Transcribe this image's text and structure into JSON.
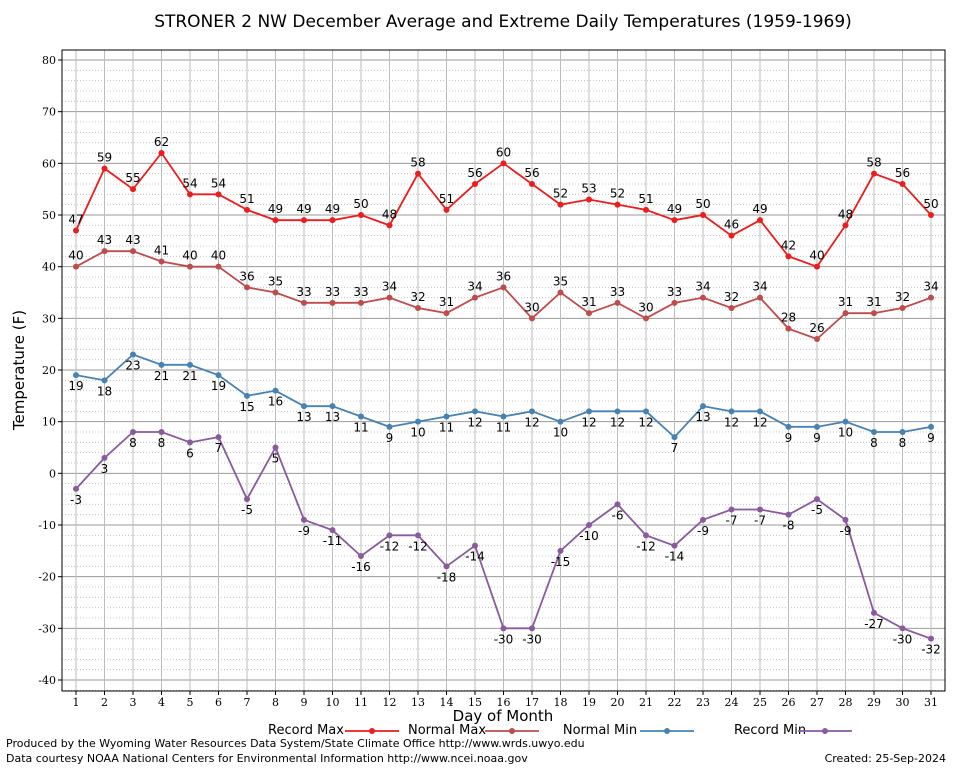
{
  "chart_data": {
    "type": "line",
    "title": "STRONER 2 NW December Average and Extreme Daily Temperatures (1959-1969)",
    "xlabel": "Day of Month",
    "ylabel": "Temperature (F)",
    "ylim": [
      -40,
      80
    ],
    "xlim": [
      1,
      31
    ],
    "yticks": [
      -40,
      -30,
      -20,
      -10,
      0,
      10,
      20,
      30,
      40,
      50,
      60,
      70,
      80
    ],
    "x": [
      1,
      2,
      3,
      4,
      5,
      6,
      7,
      8,
      9,
      10,
      11,
      12,
      13,
      14,
      15,
      16,
      17,
      18,
      19,
      20,
      21,
      22,
      23,
      24,
      25,
      26,
      27,
      28,
      29,
      30,
      31
    ],
    "grid": true,
    "legend_placement": "bottom",
    "series": [
      {
        "name": "Record Max",
        "color": "#ee1c1c",
        "label_pos": "above",
        "values": [
          47,
          59,
          55,
          62,
          54,
          54,
          51,
          49,
          49,
          49,
          50,
          48,
          58,
          51,
          56,
          60,
          56,
          52,
          53,
          52,
          51,
          49,
          50,
          46,
          49,
          42,
          40,
          48,
          58,
          56,
          50
        ]
      },
      {
        "name": "Normal Max",
        "color": "#c04b4b",
        "label_pos": "above",
        "values": [
          40,
          43,
          43,
          41,
          40,
          40,
          36,
          35,
          33,
          33,
          33,
          34,
          32,
          31,
          34,
          36,
          30,
          35,
          31,
          33,
          30,
          33,
          34,
          32,
          34,
          28,
          26,
          31,
          31,
          32,
          34
        ]
      },
      {
        "name": "Normal Min",
        "color": "#4682b4",
        "label_pos": "below",
        "values": [
          19,
          18,
          23,
          21,
          21,
          19,
          15,
          16,
          13,
          13,
          11,
          9,
          10,
          11,
          12,
          11,
          12,
          10,
          12,
          12,
          12,
          7,
          13,
          12,
          12,
          9,
          9,
          10,
          8,
          8,
          9
        ]
      },
      {
        "name": "Record Min",
        "color": "#8a5a9e",
        "label_pos": "below",
        "values": [
          -3,
          3,
          8,
          8,
          6,
          7,
          -5,
          5,
          -9,
          -11,
          -16,
          -12,
          -12,
          -18,
          -14,
          -30,
          -30,
          -15,
          -10,
          -6,
          -12,
          -14,
          -9,
          -7,
          -7,
          -8,
          -5,
          -9,
          -27,
          -30,
          -32
        ]
      }
    ]
  },
  "footer": {
    "producer": "Produced by the Wyoming Water Resources Data System/State Climate Office http://www.wrds.uwyo.edu",
    "source": "Data courtesy NOAA National Centers for Environmental Information http://www.ncei.noaa.gov",
    "created": "Created:  25-Sep-2024"
  }
}
